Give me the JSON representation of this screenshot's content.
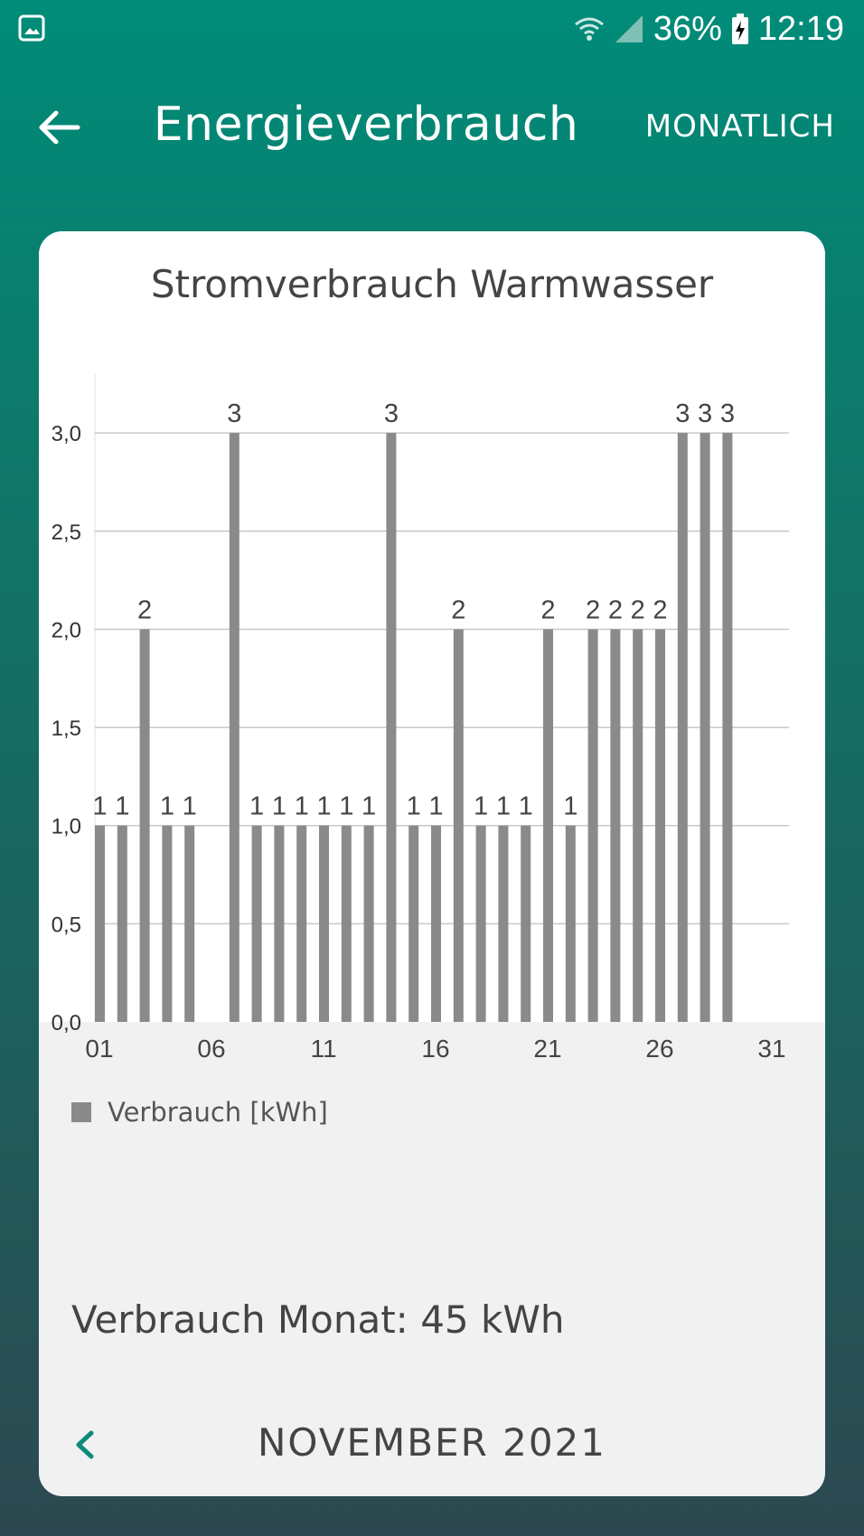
{
  "status_bar": {
    "battery": "36%",
    "time": "12:19",
    "icons": [
      "image-icon",
      "wifi-icon",
      "signal-icon",
      "battery-charging-icon"
    ]
  },
  "app_bar": {
    "title": "Energieverbrauch",
    "period_label": "MONATLICH",
    "back_icon": "arrow-left-icon"
  },
  "chart_data": {
    "type": "bar",
    "title": "Stromverbrauch Warmwasser",
    "x_tick_labels": [
      "01",
      "06",
      "11",
      "16",
      "21",
      "26",
      "31"
    ],
    "y_tick_labels": [
      "0,0",
      "0,5",
      "1,0",
      "1,5",
      "2,0",
      "2,5",
      "3,0"
    ],
    "ylim": [
      0,
      3.3
    ],
    "x_range": [
      1,
      31
    ],
    "x": [
      1,
      2,
      3,
      4,
      5,
      7,
      8,
      9,
      10,
      11,
      12,
      13,
      14,
      15,
      16,
      17,
      18,
      19,
      20,
      21,
      22,
      23,
      24,
      25,
      26,
      27,
      28,
      29
    ],
    "values": [
      1,
      1,
      2,
      1,
      1,
      3,
      1,
      1,
      1,
      1,
      1,
      1,
      3,
      1,
      1,
      2,
      1,
      1,
      1,
      2,
      1,
      2,
      2,
      2,
      2,
      3,
      3,
      3
    ],
    "series_name": "Verbrauch [kWh]",
    "bar_color": "#8a8a8a",
    "grid": true,
    "legend_position": "bottom-left"
  },
  "summary": {
    "label": "Verbrauch Monat:",
    "value": "45 kWh"
  },
  "navigation": {
    "month": "NOVEMBER 2021",
    "prev_icon": "chevron-left-icon"
  },
  "colors": {
    "accent": "#008c79",
    "chevron": "#0e8a7b"
  }
}
